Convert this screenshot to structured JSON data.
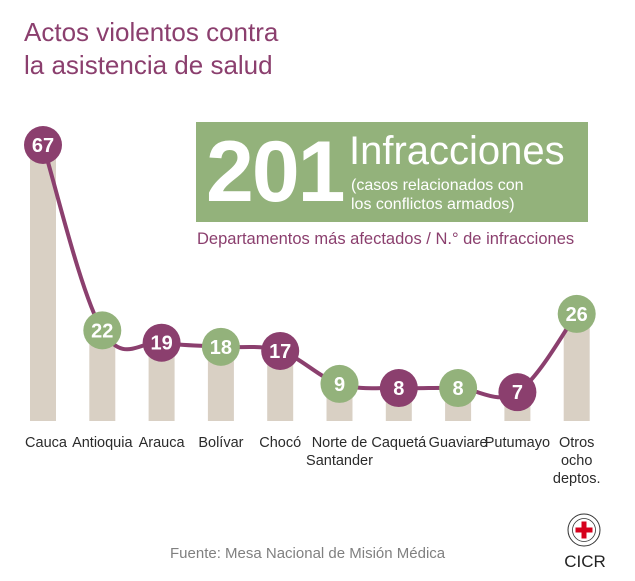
{
  "title": {
    "line1": "Actos violentos contra",
    "line2": "la asistencia de salud"
  },
  "total": {
    "number": "201",
    "label": "Infracciones",
    "note_line1": "(casos relacionados con",
    "note_line2": "los conflictos armados)"
  },
  "subtitle": "Departamentos más afectados / N.° de infracciones",
  "source": "Fuente: Mesa Nacional de Misión Médica",
  "logo": {
    "text": "CICR",
    "emblem_text": "COMITÉ INTERNACIONAL GINEBRA",
    "icon": "red-cross-emblem"
  },
  "colors": {
    "purple": "#8b3f6e",
    "green": "#93b27b",
    "bar": "#d9d0c4",
    "text": "#2b2b2b"
  },
  "chart_data": {
    "type": "bar",
    "categories": [
      [
        "Cauca"
      ],
      [
        "Antioquia"
      ],
      [
        "Arauca"
      ],
      [
        "Bolívar"
      ],
      [
        "Chocó"
      ],
      [
        "Norte de",
        "Santander"
      ],
      [
        "Caquetá"
      ],
      [
        "Guaviare"
      ],
      [
        "Putumayo"
      ],
      [
        "Otros",
        "ocho",
        "deptos."
      ]
    ],
    "values": [
      67,
      22,
      19,
      18,
      17,
      9,
      8,
      8,
      7,
      26
    ],
    "marker_colors": [
      "purple",
      "green",
      "purple",
      "green",
      "purple",
      "green",
      "purple",
      "green",
      "purple",
      "green"
    ],
    "ylim": [
      0,
      67
    ],
    "grid": false,
    "legend": "none"
  }
}
